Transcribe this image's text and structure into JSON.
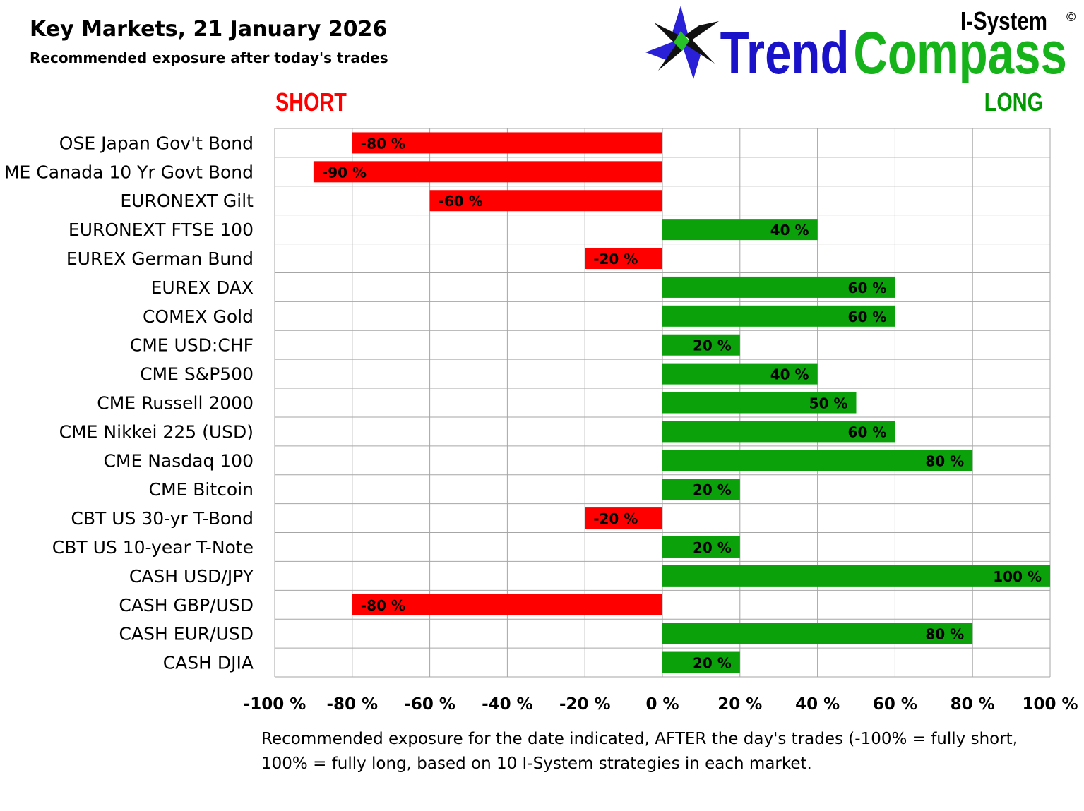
{
  "header": {
    "title": "Key Markets, 21 January 2026",
    "subtitle": "Recommended exposure after today's trades"
  },
  "logo": {
    "brand_prefix": "I-System",
    "copyright_mark": "©",
    "brand_word_1": "Trend",
    "brand_word_2": "Compass",
    "colors": {
      "trend": "#1a12c9",
      "compass": "#16b31b",
      "star_dark": "#111111",
      "star_blue": "#2a20d8",
      "star_green": "#27c227"
    }
  },
  "labels": {
    "short": "SHORT",
    "long": "LONG"
  },
  "colors": {
    "short_bar": "#ff0000",
    "long_bar": "#0aa10a",
    "grid": "#a6a6a6",
    "short_text": "#ff0000",
    "long_text": "#009900"
  },
  "chart_data": {
    "type": "bar",
    "orientation": "horizontal",
    "categories": [
      "OSE Japan Gov't Bond",
      "ME Canada 10 Yr Govt Bond",
      "EURONEXT Gilt",
      "EURONEXT FTSE 100",
      "EUREX German Bund",
      "EUREX DAX",
      "COMEX Gold",
      "CME USD:CHF",
      "CME S&P500",
      "CME Russell 2000",
      "CME Nikkei 225 (USD)",
      "CME Nasdaq 100",
      "CME Bitcoin",
      "CBT US 30-yr T-Bond",
      "CBT US 10-year T-Note",
      "CASH USD/JPY",
      "CASH GBP/USD",
      "CASH EUR/USD",
      "CASH DJIA"
    ],
    "values": [
      -80,
      -90,
      -60,
      40,
      -20,
      60,
      60,
      20,
      40,
      50,
      60,
      80,
      20,
      -20,
      20,
      100,
      -80,
      80,
      20
    ],
    "data_labels": [
      "-80 %",
      "-90 %",
      "-60 %",
      "40 %",
      "-20 %",
      "60 %",
      "60 %",
      "20 %",
      "40 %",
      "50 %",
      "60 %",
      "80 %",
      "20 %",
      "-20 %",
      "20 %",
      "100 %",
      "-80 %",
      "80 %",
      "20 %"
    ],
    "xlim": [
      -100,
      100
    ],
    "x_ticks": [
      -100,
      -80,
      -60,
      -40,
      -20,
      0,
      20,
      40,
      60,
      80,
      100
    ],
    "x_tick_labels": [
      "-100 %",
      "-80 %",
      "-60 %",
      "-40 %",
      "-20 %",
      "0 %",
      "20 %",
      "40 %",
      "60 %",
      "80 %",
      "100 %"
    ],
    "grid": true,
    "legend": "none"
  },
  "footnote": "Recommended exposure for the date indicated, AFTER the day's trades (-100% = fully short, 100% = fully long, based on 10 I-System strategies in each market."
}
